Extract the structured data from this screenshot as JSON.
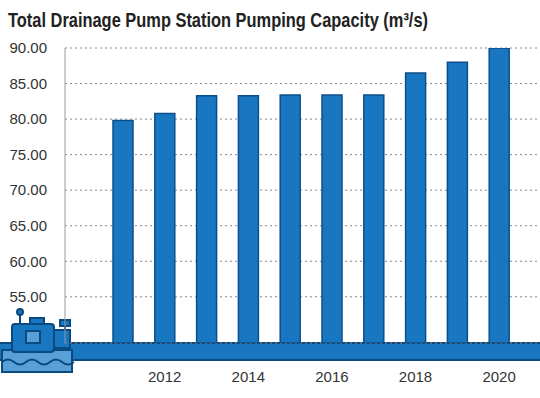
{
  "chart_data": {
    "type": "bar",
    "title": "Total Drainage Pump Station Pumping Capacity (m³/s)",
    "categories": [
      null,
      "2012",
      null,
      "2014",
      null,
      "2016",
      null,
      "2018",
      null,
      "2020"
    ],
    "values": [
      79.8,
      80.8,
      83.3,
      83.3,
      83.4,
      83.4,
      83.4,
      86.5,
      88.0,
      90.0
    ],
    "color": "#1976c0",
    "ylim": [
      48.5,
      90
    ],
    "yticks": [
      {
        "value": 55,
        "label": "55.00"
      },
      {
        "value": 60,
        "label": "60.00"
      },
      {
        "value": 65,
        "label": "65.00"
      },
      {
        "value": 70,
        "label": "70.00"
      },
      {
        "value": 75,
        "label": "75.00"
      },
      {
        "value": 80,
        "label": "80.00"
      },
      {
        "value": 85,
        "label": "85.00"
      },
      {
        "value": 90,
        "label": "90.00"
      }
    ],
    "grid": true
  }
}
